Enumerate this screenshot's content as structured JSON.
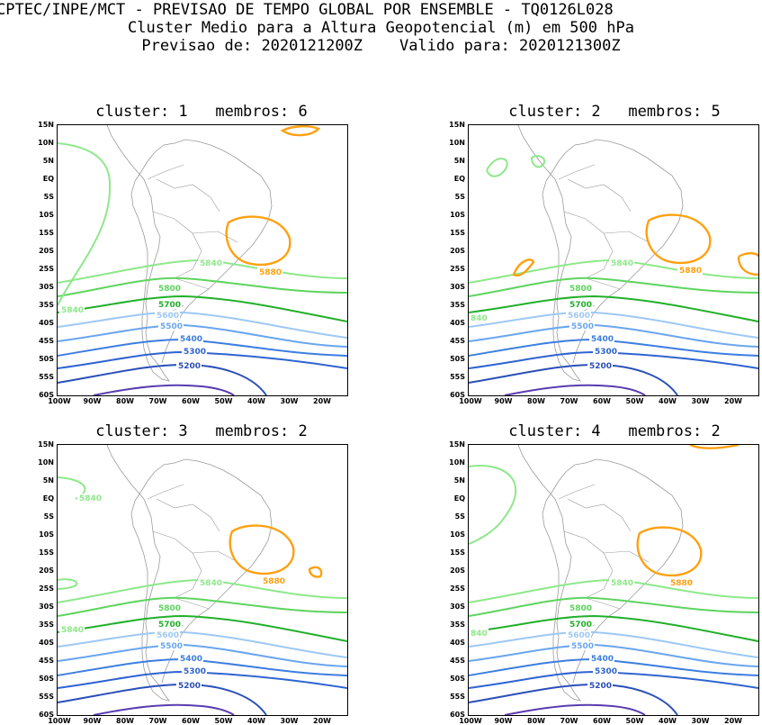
{
  "header": {
    "line1": "CPTEC/INPE/MCT - PREVISAO DE TEMPO GLOBAL POR ENSEMBLE - TQ0126L028",
    "line2": "Cluster Medio para a Altura Geopotencial (m) em 500 hPa",
    "line3": "Previsao de: 2020121200Z    Valido para: 2020121300Z"
  },
  "axes": {
    "lat_labels": [
      "15N",
      "10N",
      "5N",
      "EQ",
      "5S",
      "10S",
      "15S",
      "20S",
      "25S",
      "30S",
      "35S",
      "40S",
      "45S",
      "50S",
      "55S",
      "60S"
    ],
    "lon_labels": [
      "100W",
      "90W",
      "80W",
      "70W",
      "60W",
      "50W",
      "40W",
      "30W",
      "20W"
    ]
  },
  "colors": {
    "c5200": "#2a4fb8",
    "c5300": "#2e64d0",
    "c5400": "#3c7ee0",
    "c5500": "#6aa6ee",
    "c5600": "#9ec8f4",
    "c5700": "#22b02a",
    "c5800": "#5ed45e",
    "c5840": "#8ee88a",
    "c5880": "#ffa010",
    "c5100": "#5a3cb0",
    "coast": "#9a9a9a"
  },
  "panels": [
    {
      "title": "cluster: 1   membros: 6",
      "labels": {
        "l5840a": "5840",
        "l5840b": "5840",
        "l5880": "5880",
        "l5800": "5800",
        "l5700": "5700",
        "l5600": "5600",
        "l5500": "5500",
        "l5400": "5400",
        "l5300": "5300",
        "l5200": "5200"
      }
    },
    {
      "title": "cluster: 2   membros: 5",
      "labels": {
        "l5840a": "840",
        "l5840b": "5840",
        "l5880": "5880",
        "l5800": "5800",
        "l5700": "5700",
        "l5600": "5600",
        "l5500": "5500",
        "l5400": "5400",
        "l5300": "5300",
        "l5200": "5200"
      }
    },
    {
      "title": "cluster: 3   membros: 2",
      "labels": {
        "l5840a": "5840",
        "l5840b": "5840",
        "l5840c": "5840",
        "l5880": "5880",
        "l5800": "5800",
        "l5700": "5700",
        "l5600": "5600",
        "l5500": "5500",
        "l5400": "5400",
        "l5300": "5300",
        "l5200": "5200"
      }
    },
    {
      "title": "cluster: 4   membros: 2",
      "labels": {
        "l5840a": "840",
        "l5840b": "5840",
        "l5880": "5880",
        "l5800": "5800",
        "l5700": "5700",
        "l5600": "5600",
        "l5500": "5500",
        "l5400": "5400",
        "l5300": "5300",
        "l5200": "5200"
      }
    }
  ]
}
